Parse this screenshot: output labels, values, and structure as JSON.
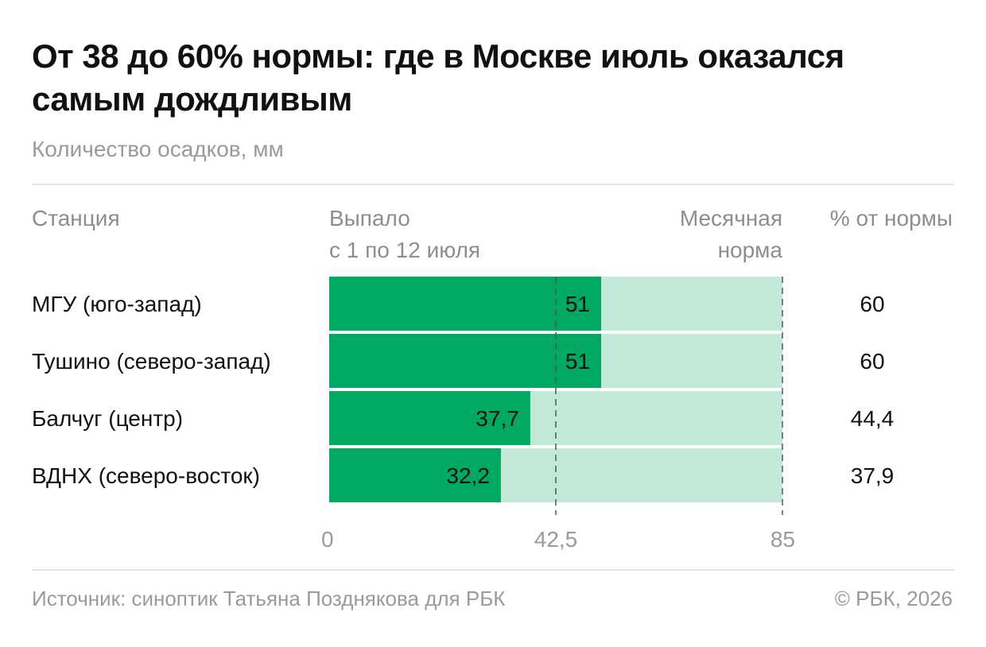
{
  "title": "От 38 до 60% нормы: где в Москве июль оказался самым дождливым",
  "subtitle": "Количество осадков, мм",
  "headers": {
    "station": "Станция",
    "fallen_line1": "Выпало",
    "fallen_line2": "с 1 по 12 июля",
    "norm_line1": "Месячная",
    "norm_line2": "норма",
    "percent": "% от нормы"
  },
  "footer": {
    "source": "Источник: синоптик Татьяна Позднякова для РБК",
    "copyright": "© РБК, 2026"
  },
  "colors": {
    "bar": "#00a862",
    "norm_bg": "#c3ead8",
    "text": "#111111",
    "muted": "#9a9a9a"
  },
  "chart_data": {
    "type": "bar",
    "orientation": "horizontal",
    "categories": [
      "МГУ (юго-запад)",
      "Тушино (северо-запад)",
      "Балчуг (центр)",
      "ВДНХ (северо-восток)"
    ],
    "series": [
      {
        "name": "Выпало с 1 по 12 июля",
        "values": [
          51,
          51,
          37.7,
          32.2
        ],
        "labels": [
          "51",
          "51",
          "37,7",
          "32,2"
        ]
      }
    ],
    "norm": 85,
    "percent_of_norm": [
      "60",
      "60",
      "44,4",
      "37,9"
    ],
    "xlim": [
      0,
      85
    ],
    "ticks": [
      0,
      42.5,
      85
    ],
    "tick_labels": [
      "0",
      "42,5",
      "85"
    ],
    "grid": "dashed lines at ticks",
    "legend": "none"
  }
}
